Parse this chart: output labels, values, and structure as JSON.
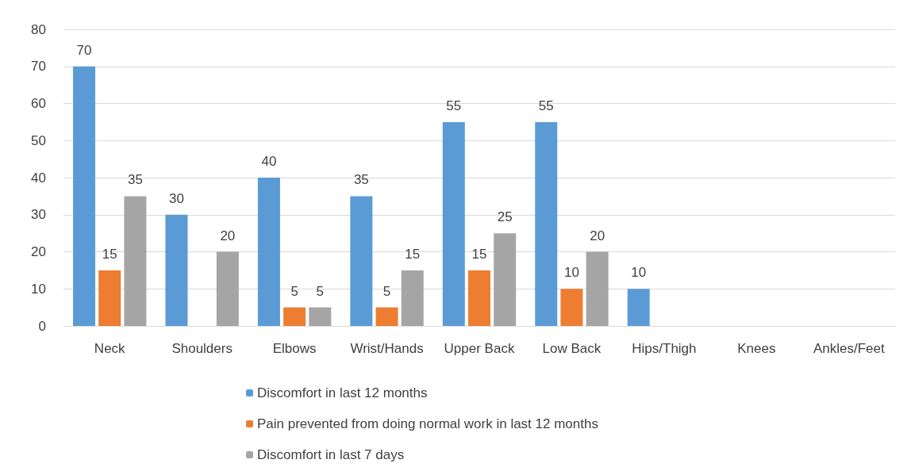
{
  "chart_data": {
    "type": "bar",
    "categories": [
      "Neck",
      "Shoulders",
      "Elbows",
      "Wrist/Hands",
      "Upper Back",
      "Low Back",
      "Hips/Thigh",
      "Knees",
      "Ankles/Feet"
    ],
    "series": [
      {
        "name": "Discomfort in last 12 months",
        "color": "#5b9bd5",
        "values": [
          70,
          30,
          40,
          35,
          55,
          55,
          10,
          null,
          null
        ]
      },
      {
        "name": "Pain prevented from doing normal work in last 12 months",
        "color": "#ed7d31",
        "values": [
          15,
          null,
          5,
          5,
          15,
          10,
          null,
          null,
          null
        ]
      },
      {
        "name": "Discomfort in last 7 days",
        "color": "#a5a5a5",
        "values": [
          35,
          20,
          5,
          15,
          25,
          20,
          null,
          null,
          null
        ]
      }
    ],
    "ylim": [
      0,
      80
    ],
    "yticks": [
      0,
      10,
      20,
      30,
      40,
      50,
      60,
      70,
      80
    ],
    "grid": "y",
    "legend": "bottom",
    "data_labels": true
  }
}
